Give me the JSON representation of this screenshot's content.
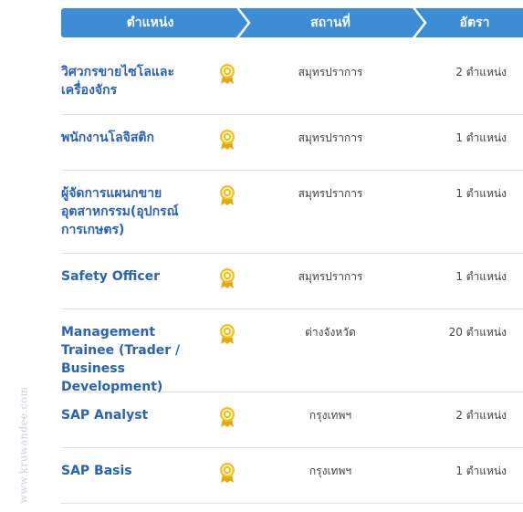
{
  "header": {
    "position_label": "ตำแหน่ง",
    "location_label": "สถานที่",
    "rate_label": "อัตรา"
  },
  "jobs": [
    {
      "title": "วิศวกรขายไซโลและเครื่องจักร",
      "location": "สมุทรปราการ",
      "count": "2 ตำแหน่ง",
      "icon": "medal-icon"
    },
    {
      "title": "พนักงานโลจิสติก",
      "location": "สมุทรปราการ",
      "count": "1 ตำแหน่ง",
      "icon": "medal-icon"
    },
    {
      "title": "ผู้จัดการแผนกขายอุตสาหกรรม(อุปกรณ์การเกษตร)",
      "location": "สมุทรปราการ",
      "count": "1 ตำแหน่ง",
      "icon": "medal-icon"
    },
    {
      "title": "Safety Officer",
      "location": "สมุทรปราการ",
      "count": "1 ตำแหน่ง",
      "icon": "medal-icon"
    },
    {
      "title": "Management Trainee (Trader / Business Development)",
      "location": "ต่างจังหวัด",
      "count": "20 ตำแหน่ง",
      "icon": "medal-icon"
    },
    {
      "title": "SAP Analyst",
      "location": "กรุงเทพฯ",
      "count": "2 ตำแหน่ง",
      "icon": "medal-icon"
    },
    {
      "title": "SAP Basis",
      "location": "กรุงเทพฯ",
      "count": "1 ตำแหน่ง",
      "icon": "medal-icon"
    }
  ],
  "watermark": "www.kruwandee.com",
  "colors": {
    "header_bg": "#3d8dd6",
    "title_link": "#2b63b4",
    "medal_gold": "#f2c21b",
    "row_divider": "#e3e3e3"
  }
}
